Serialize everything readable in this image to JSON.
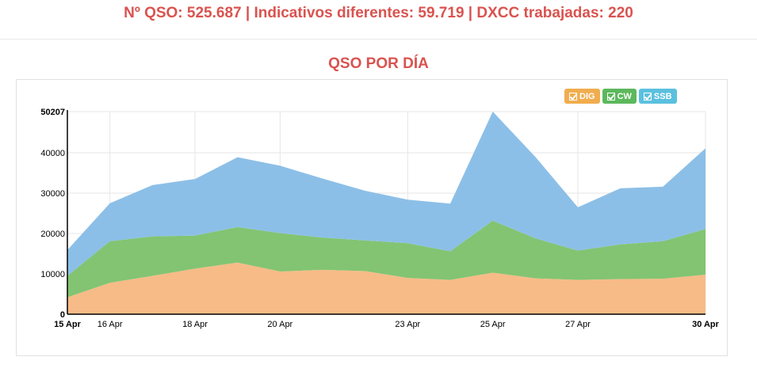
{
  "header": {
    "stats_text": "Nº QSO: 525.687 | Indicativos diferentes: 59.719 | DXCC trabajadas: 220"
  },
  "chart_data": {
    "type": "area",
    "stacked": true,
    "title": "QSO POR DÍA",
    "x": [
      "15 Apr",
      "16 Apr",
      "17 Apr",
      "18 Apr",
      "19 Apr",
      "20 Apr",
      "21 Apr",
      "22 Apr",
      "23 Apr",
      "24 Apr",
      "25 Apr",
      "26 Apr",
      "27 Apr",
      "28 Apr",
      "29 Apr",
      "30 Apr"
    ],
    "x_tick_labels": [
      "15 Apr",
      "16 Apr",
      "18 Apr",
      "20 Apr",
      "23 Apr",
      "25 Apr",
      "27 Apr",
      "30 Apr"
    ],
    "x_tick_indices": [
      0,
      1,
      3,
      5,
      8,
      10,
      12,
      15
    ],
    "y_ticks": [
      0,
      10000,
      20000,
      30000,
      40000,
      50207
    ],
    "ylim": [
      0,
      50207
    ],
    "grid": true,
    "legend_position": "top-right",
    "series": [
      {
        "name": "DIG",
        "color": "#f7bb87",
        "legend_color": "#f0ad4e",
        "values": [
          4200,
          7800,
          9500,
          11300,
          12800,
          10600,
          11000,
          10700,
          9000,
          8500,
          10300,
          8900,
          8500,
          8700,
          8800,
          9800
        ]
      },
      {
        "name": "CW",
        "color": "#82c472",
        "legend_color": "#5cb85c",
        "values": [
          5300,
          10300,
          9800,
          8200,
          8800,
          9500,
          8000,
          7600,
          8600,
          7100,
          12900,
          9900,
          7300,
          8600,
          9300,
          11300
        ]
      },
      {
        "name": "SSB",
        "color": "#8cbfe7",
        "legend_color": "#5bc0de",
        "values": [
          6400,
          9400,
          12700,
          14000,
          17300,
          16700,
          14600,
          12300,
          10800,
          11800,
          27000,
          20200,
          10700,
          13900,
          13500,
          20000
        ]
      }
    ]
  }
}
